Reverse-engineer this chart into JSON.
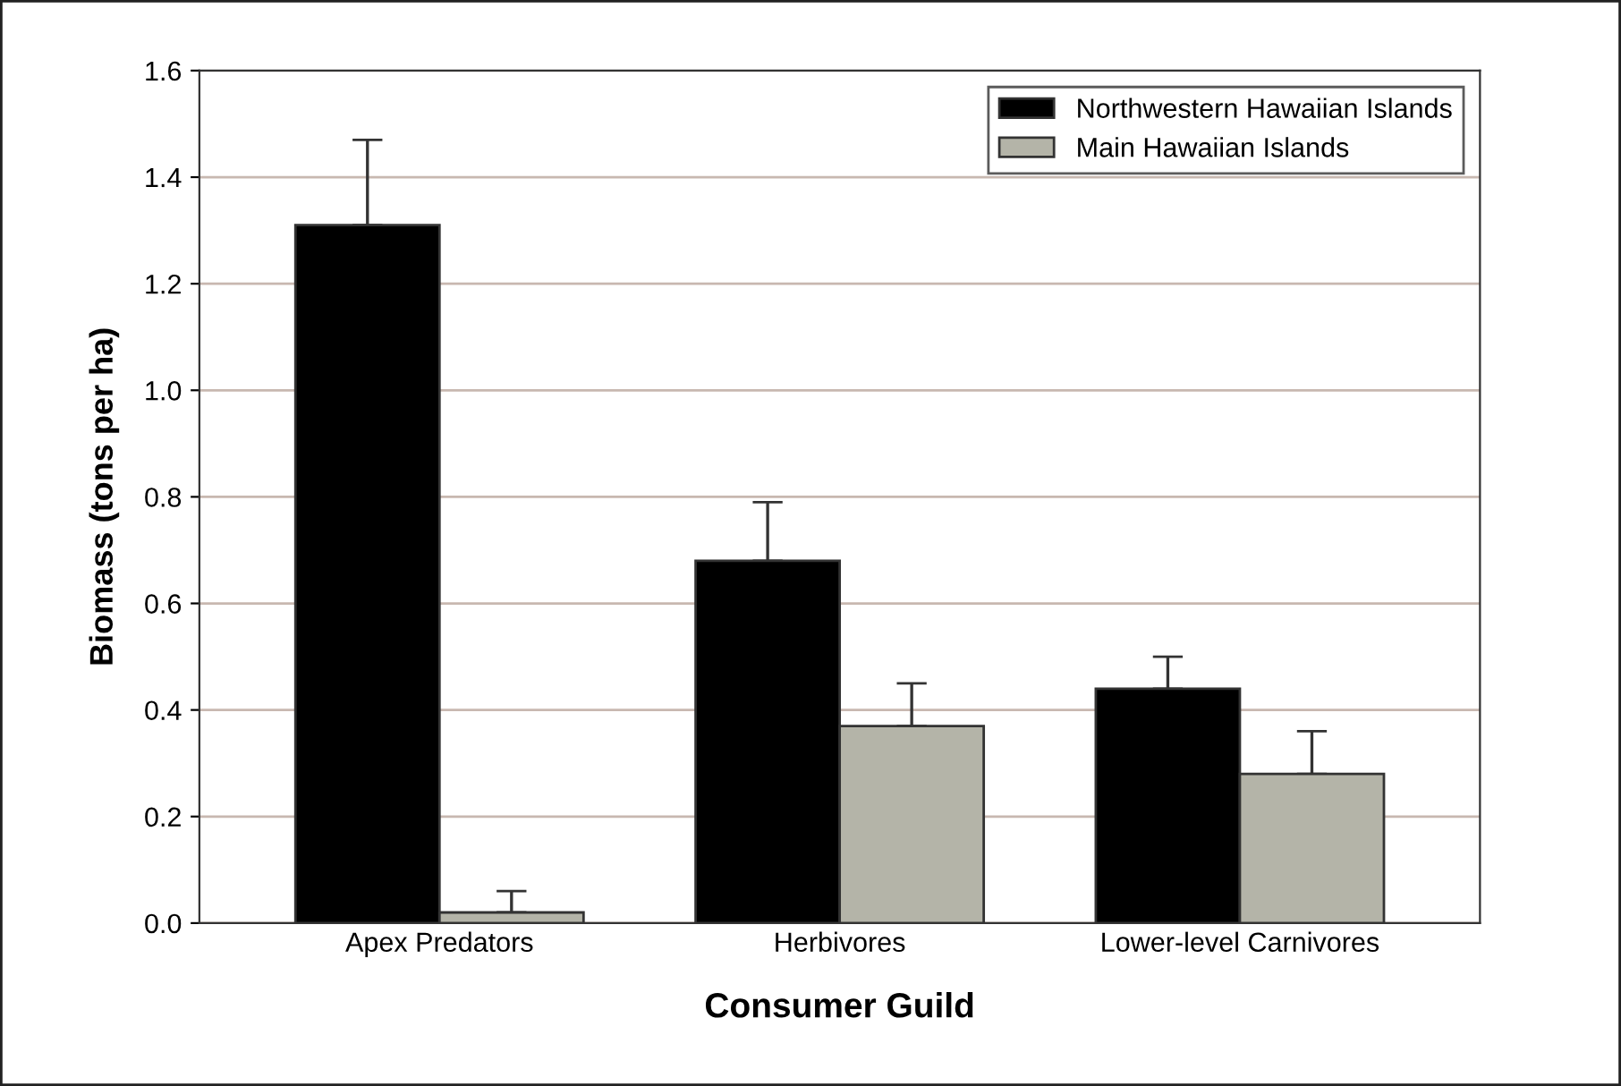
{
  "chart_data": {
    "type": "bar",
    "xlabel": "Consumer Guild",
    "ylabel": "Biomass (tons per ha)",
    "categories": [
      "Apex Predators",
      "Herbivores",
      "Lower-level Carnivores"
    ],
    "series": [
      {
        "name": "Northwestern Hawaiian Islands",
        "color": "#000000",
        "values": [
          1.31,
          0.68,
          0.44
        ],
        "errors": [
          [
            1.31,
            1.47
          ],
          [
            0.68,
            0.79
          ],
          [
            0.44,
            0.5
          ]
        ]
      },
      {
        "name": "Main Hawaiian Islands",
        "color": "#b4b4a8",
        "values": [
          0.02,
          0.37,
          0.28
        ],
        "errors": [
          [
            0.02,
            0.06
          ],
          [
            0.37,
            0.45
          ],
          [
            0.28,
            0.36
          ]
        ]
      }
    ],
    "ylim": [
      0,
      1.6
    ],
    "yticks": [
      {
        "value": 0,
        "label": "0.0"
      },
      0.2,
      0.4,
      0.6,
      0.8,
      {
        "value": 1,
        "label": "1.0"
      },
      1.2,
      1.4,
      1.6
    ],
    "grid": "y",
    "legend": "top right"
  }
}
